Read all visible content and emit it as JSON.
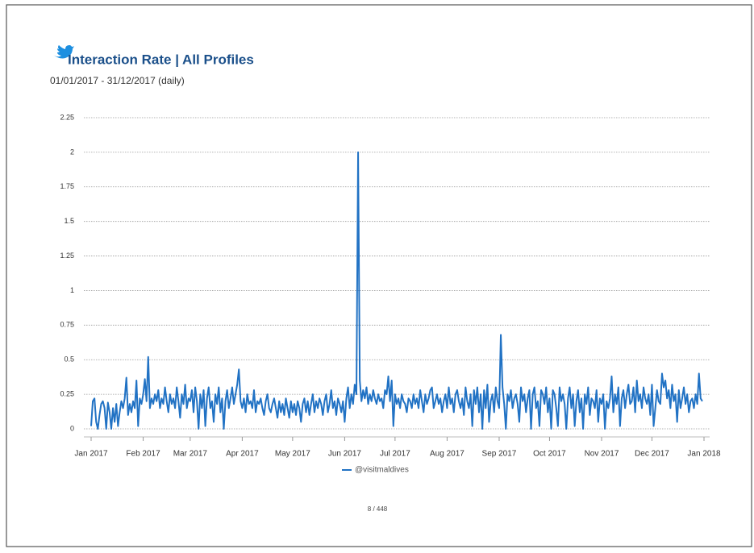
{
  "chart_data": {
    "type": "line",
    "title": "Interaction Rate | All Profiles",
    "subtitle": "01/01/2017 - 31/12/2017 (daily)",
    "xlim": [
      0,
      365
    ],
    "xticks": [
      {
        "value": 0,
        "label": "Jan 2017"
      },
      {
        "value": 31,
        "label": "Feb 2017"
      },
      {
        "value": 59,
        "label": "Mar 2017"
      },
      {
        "value": 90,
        "label": "Apr 2017"
      },
      {
        "value": 120,
        "label": "May 2017"
      },
      {
        "value": 151,
        "label": "Jun 2017"
      },
      {
        "value": 181,
        "label": "Jul 2017"
      },
      {
        "value": 212,
        "label": "Aug 2017"
      },
      {
        "value": 243,
        "label": "Sep 2017"
      },
      {
        "value": 273,
        "label": "Oct 2017"
      },
      {
        "value": 304,
        "label": "Nov 2017"
      },
      {
        "value": 334,
        "label": "Dec 2017"
      },
      {
        "value": 365,
        "label": "Jan 2018"
      }
    ],
    "ylim": [
      0,
      2.25
    ],
    "yticks": [
      0,
      0.25,
      0.5,
      0.75,
      1,
      1.25,
      1.5,
      1.75,
      2,
      2.25
    ],
    "grid": true,
    "legend": "bottom",
    "series": [
      {
        "name": "@visitmaldives",
        "color": "#2172c4",
        "values": [
          0.02,
          0.2,
          0.22,
          0.05,
          0,
          0.1,
          0.18,
          0.2,
          0.15,
          0,
          0.19,
          0.12,
          0,
          0.15,
          0.05,
          0.18,
          0.02,
          0.12,
          0.2,
          0.15,
          0.22,
          0.37,
          0.1,
          0.18,
          0.12,
          0.2,
          0.15,
          0.35,
          0.02,
          0.22,
          0.18,
          0.25,
          0.36,
          0.2,
          0.52,
          0.15,
          0.22,
          0.18,
          0.25,
          0.2,
          0.28,
          0.15,
          0.22,
          0.18,
          0.3,
          0.2,
          0.12,
          0.25,
          0.18,
          0.22,
          0.15,
          0.3,
          0.2,
          0.08,
          0.25,
          0.18,
          0.32,
          0.15,
          0.22,
          0.2,
          0.28,
          0.12,
          0.3,
          0.2,
          0,
          0.25,
          0.15,
          0.28,
          0.02,
          0.22,
          0.3,
          0.15,
          0.2,
          0.05,
          0.25,
          0.18,
          0.3,
          0.12,
          0.22,
          0,
          0.2,
          0.28,
          0.15,
          0.22,
          0.3,
          0.18,
          0.25,
          0.32,
          0.43,
          0.2,
          0.15,
          0.22,
          0.12,
          0.25,
          0.18,
          0.2,
          0.15,
          0.28,
          0.12,
          0.2,
          0.18,
          0.22,
          0.15,
          0.1,
          0.2,
          0.25,
          0.15,
          0.12,
          0.18,
          0.22,
          0.15,
          0.08,
          0.2,
          0.12,
          0.18,
          0.1,
          0.22,
          0.15,
          0.08,
          0.2,
          0.12,
          0.18,
          0.1,
          0.2,
          0.15,
          0.05,
          0.18,
          0.22,
          0.12,
          0.2,
          0.1,
          0.18,
          0.25,
          0.12,
          0.2,
          0.15,
          0.22,
          0.18,
          0.1,
          0.2,
          0.25,
          0.12,
          0.18,
          0.28,
          0.15,
          0.2,
          0.1,
          0.22,
          0.18,
          0.12,
          0.2,
          0.05,
          0.22,
          0.3,
          0.15,
          0.25,
          0.18,
          0.32,
          0.25,
          2.0,
          0.35,
          0.2,
          0.28,
          0.22,
          0.3,
          0.18,
          0.25,
          0.2,
          0.28,
          0.22,
          0.18,
          0.25,
          0.2,
          0.22,
          0.15,
          0.28,
          0.25,
          0.38,
          0.2,
          0.35,
          0.02,
          0.25,
          0.18,
          0.22,
          0.15,
          0.25,
          0.2,
          0.18,
          0.12,
          0.22,
          0.2,
          0.15,
          0.25,
          0.18,
          0.22,
          0.15,
          0.28,
          0.2,
          0.12,
          0.25,
          0.18,
          0.22,
          0.28,
          0.3,
          0.15,
          0.2,
          0.25,
          0.18,
          0.22,
          0.12,
          0.2,
          0.25,
          0.15,
          0.3,
          0.18,
          0.22,
          0.12,
          0.25,
          0.28,
          0.2,
          0.15,
          0.22,
          0.1,
          0.3,
          0.2,
          0.15,
          0.25,
          0.02,
          0.28,
          0.18,
          0.3,
          0.12,
          0.25,
          0,
          0.28,
          0.15,
          0.32,
          0.05,
          0.2,
          0.25,
          0.12,
          0.3,
          0.2,
          0.15,
          0.68,
          0.3,
          0.18,
          0,
          0.25,
          0.2,
          0.28,
          0.15,
          0.22,
          0.25,
          0.18,
          0.05,
          0.3,
          0.2,
          0.25,
          0.12,
          0.22,
          0.28,
          0,
          0.25,
          0.3,
          0.15,
          0.2,
          0.02,
          0.28,
          0.25,
          0.18,
          0.3,
          0.12,
          0.22,
          0,
          0.28,
          0.25,
          0.15,
          0.02,
          0.3,
          0.2,
          0.25,
          0.18,
          0,
          0.22,
          0.3,
          0.15,
          0.25,
          0.02,
          0.2,
          0.28,
          0.12,
          0.22,
          0,
          0.25,
          0.18,
          0.3,
          0.1,
          0.22,
          0.2,
          0.15,
          0.28,
          0.05,
          0.22,
          0.18,
          0.25,
          0,
          0.2,
          0.15,
          0.22,
          0.38,
          0.12,
          0.25,
          0.18,
          0.3,
          0.02,
          0.22,
          0.28,
          0.15,
          0.25,
          0.32,
          0.18,
          0.2,
          0.3,
          0.12,
          0.35,
          0.2,
          0.25,
          0.15,
          0.3,
          0.22,
          0.18,
          0.25,
          0.1,
          0.32,
          0.02,
          0.15,
          0.28,
          0.2,
          0.18,
          0.4,
          0.3,
          0.35,
          0.22,
          0.28,
          0.15,
          0.32,
          0.2,
          0.25,
          0.05,
          0.28,
          0.15,
          0.22,
          0.3,
          0.18,
          0.25,
          0.12,
          0.2,
          0.22,
          0.15,
          0.25,
          0.18,
          0.4,
          0.22,
          0.2
        ]
      }
    ]
  },
  "page_number": "8 / 448"
}
